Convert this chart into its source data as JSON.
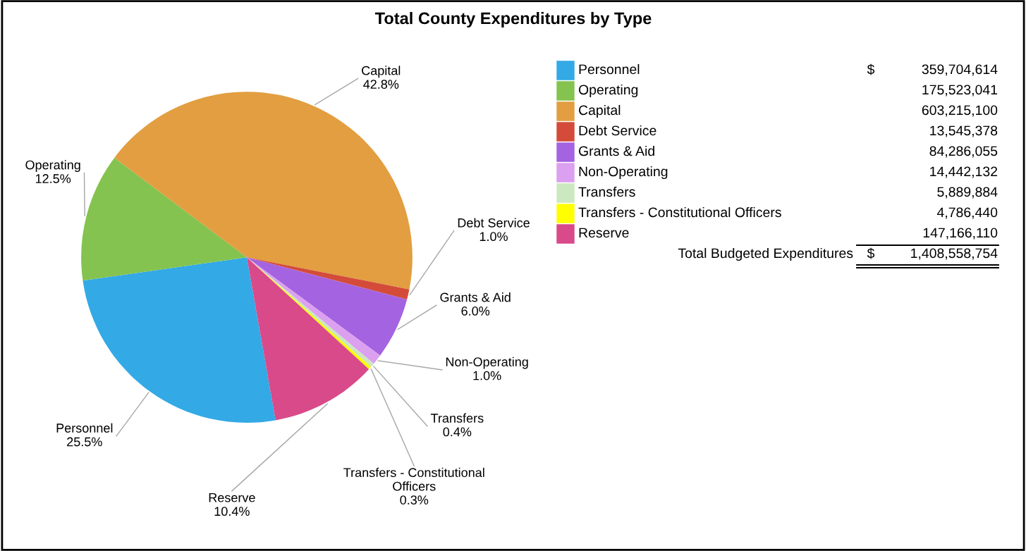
{
  "chart_data": {
    "type": "pie",
    "title": "Total County Expenditures by Type",
    "categories": [
      "Personnel",
      "Operating",
      "Capital",
      "Debt Service",
      "Grants & Aid",
      "Non-Operating",
      "Transfers",
      "Transfers - Constitutional Officers",
      "Reserve"
    ],
    "values": [
      25.5,
      12.5,
      42.8,
      1.0,
      6.0,
      1.0,
      0.4,
      0.3,
      10.4
    ],
    "value_labels": [
      "25.5%",
      "12.5%",
      "42.8%",
      "1.0%",
      "6.0%",
      "1.0%",
      "0.4%",
      "0.3%",
      "10.4%"
    ],
    "colors": [
      "#33a9e6",
      "#84c34f",
      "#e29e40",
      "#d44b3a",
      "#a463e0",
      "#dca0f0",
      "#cce8c0",
      "#ffff00",
      "#d94a8a"
    ],
    "legend": "right",
    "annotations": [
      "$",
      "359,704,614",
      "175,523,041",
      "603,215,100",
      "13,545,378",
      "84,286,055",
      "14,442,132",
      "5,889,884",
      "4,786,440",
      "147,166,110",
      "Total Budgeted Expenditures",
      "$",
      "1,408,558,754"
    ]
  }
}
